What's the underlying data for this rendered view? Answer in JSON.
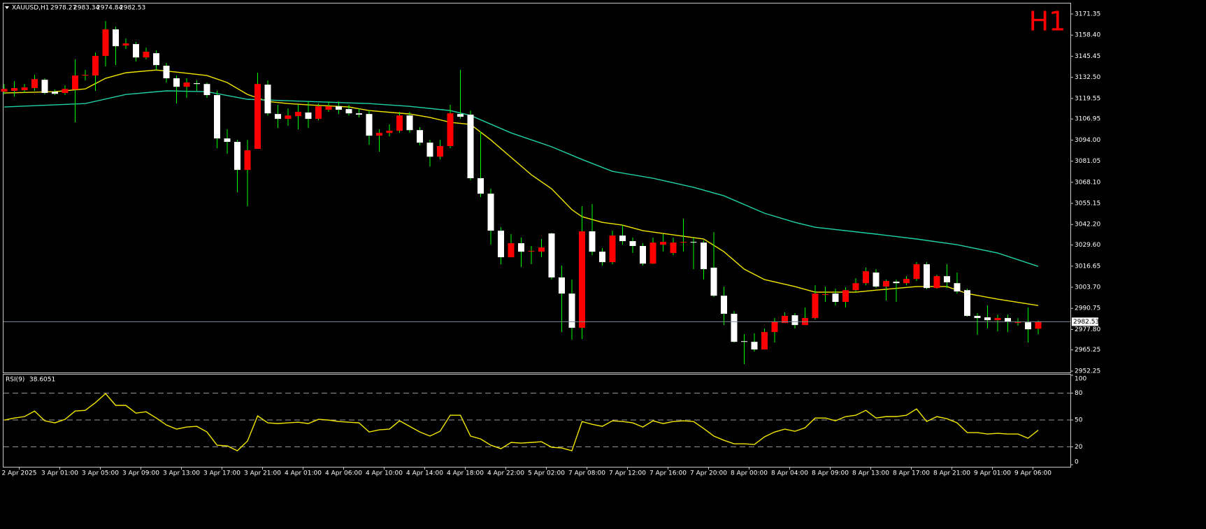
{
  "chart_data": {
    "type": "candlestick",
    "title": "XAUUSD,H1",
    "timeframe": "H1",
    "categories": [
      null,
      "2 Apr 2025",
      null,
      null,
      null,
      "3 Apr 01:00",
      null,
      null,
      null,
      "3 Apr 05:00",
      null,
      null,
      null,
      "3 Apr 09:00",
      null,
      null,
      null,
      "3 Apr 13:00",
      null,
      null,
      null,
      "3 Apr 17:00",
      null,
      null,
      null,
      "3 Apr 21:00",
      null,
      null,
      null,
      "4 Apr 01:00",
      null,
      null,
      null,
      "4 Apr 06:00",
      null,
      null,
      null,
      "4 Apr 10:00",
      null,
      null,
      null,
      "4 Apr 14:00",
      null,
      null,
      null,
      "4 Apr 18:00",
      null,
      null,
      null,
      "4 Apr 22:00",
      null,
      null,
      null,
      "5 Apr 02:00",
      null,
      null,
      null,
      "7 Apr 08:00",
      null,
      null,
      null,
      "7 Apr 12:00",
      null,
      null,
      null,
      "7 Apr 16:00",
      null,
      null,
      null,
      "7 Apr 20:00",
      null,
      null,
      null,
      "8 Apr 00:00",
      null,
      null,
      null,
      "8 Apr 04:00",
      null,
      null,
      null,
      "8 Apr 09:00",
      null,
      null,
      null,
      "8 Apr 13:00",
      null,
      null,
      null,
      "8 Apr 17:00",
      null,
      null,
      null,
      "8 Apr 21:00",
      null,
      null,
      null,
      "9 Apr 01:00",
      null,
      null,
      null,
      "9 Apr 06:00",
      null
    ],
    "open": [
      3123.7,
      3124.2,
      3124.6,
      3125.9,
      3131.0,
      3123.7,
      3122.9,
      3125.0,
      3133.6,
      3133.6,
      3145.6,
      3161.9,
      3152.0,
      3152.9,
      3144.7,
      3147.3,
      3139.6,
      3131.9,
      3126.7,
      3128.9,
      3128.4,
      3121.6,
      3095.0,
      3092.9,
      3075.7,
      3088.6,
      3128.0,
      3110.0,
      3107.0,
      3108.7,
      3110.9,
      3107.0,
      3112.6,
      3114.7,
      3113.0,
      3110.4,
      3110.0,
      3096.7,
      3098.4,
      3099.7,
      3109.1,
      3100.1,
      3092.4,
      3083.8,
      3090.3,
      3110.0,
      3109.6,
      3070.6,
      3061.1,
      3038.4,
      3022.1,
      3030.7,
      3026.0,
      3025.5,
      3036.7,
      3009.7,
      2999.8,
      2978.8,
      3038.0,
      3025.5,
      3019.1,
      3035.4,
      3032.0,
      3029.0,
      3018.2,
      3029.8,
      3024.7,
      3031.5,
      3031.5,
      3031.1,
      3015.7,
      2998.5,
      2987.4,
      2970.6,
      2970.2,
      2965.5,
      2976.2,
      2981.8,
      2986.5,
      2980.5,
      2984.8,
      2999.4,
      2999.8,
      2994.7,
      3001.9,
      3006.2,
      3012.7,
      3004.1,
      3007.1,
      3006.2,
      3008.8,
      3017.8,
      3003.2,
      3010.5,
      3006.2,
      3001.9,
      2986.1,
      2985.2,
      2983.5,
      2984.8,
      2982.2,
      2982.2,
      2978.27
    ],
    "high": [
      3128.4,
      3130.2,
      3128.4,
      3134.0,
      3131.9,
      3125.0,
      3127.6,
      3143.5,
      3137.0,
      3147.7,
      3167.0,
      3163.6,
      3156.3,
      3154.2,
      3150.7,
      3149.0,
      3141.3,
      3133.6,
      3131.9,
      3130.6,
      3129.3,
      3124.2,
      3100.6,
      3094.1,
      3094.1,
      3135.3,
      3130.6,
      3115.6,
      3113.4,
      3115.6,
      3117.7,
      3116.4,
      3117.7,
      3117.7,
      3115.6,
      3113.4,
      3112.1,
      3100.6,
      3103.6,
      3111.3,
      3111.3,
      3101.9,
      3094.1,
      3094.1,
      3115.6,
      3137.0,
      3112.1,
      3099.3,
      3064.1,
      3040.5,
      3036.3,
      3034.1,
      3029.0,
      3033.3,
      3037.1,
      3017.0,
      3008.4,
      3053.4,
      3054.7,
      3027.7,
      3038.4,
      3041.8,
      3034.1,
      3030.7,
      3034.1,
      3036.3,
      3034.1,
      3045.7,
      3034.1,
      3032.4,
      3037.5,
      3004.1,
      2989.1,
      2974.9,
      2975.4,
      2978.4,
      2984.8,
      2988.2,
      2987.8,
      2991.2,
      3004.9,
      3004.1,
      3002.8,
      3003.7,
      3009.2,
      3015.7,
      3014.8,
      3008.4,
      3008.4,
      3010.5,
      3019.1,
      3019.1,
      3011.4,
      3017.8,
      3012.7,
      3002.8,
      2987.8,
      2992.5,
      2986.9,
      2986.9,
      2984.8,
      2991.2,
      2983.34
    ],
    "low": [
      3122.0,
      3120.7,
      3122.9,
      3124.2,
      3122.0,
      3121.6,
      3121.6,
      3104.9,
      3130.6,
      3124.2,
      3139.2,
      3140.0,
      3149.9,
      3142.2,
      3143.5,
      3137.0,
      3129.3,
      3116.4,
      3119.9,
      3124.2,
      3119.9,
      3089.0,
      3085.6,
      3062.0,
      3053.4,
      3088.6,
      3109.1,
      3101.4,
      3102.7,
      3100.6,
      3101.4,
      3106.1,
      3111.3,
      3110.0,
      3109.1,
      3107.9,
      3091.1,
      3086.9,
      3096.3,
      3098.4,
      3098.4,
      3090.7,
      3077.8,
      3082.1,
      3089.0,
      3107.0,
      3069.3,
      3059.0,
      3029.8,
      3017.8,
      3022.1,
      3016.1,
      3017.8,
      3022.1,
      3008.4,
      2976.2,
      2971.5,
      2971.9,
      3023.4,
      3017.0,
      3017.8,
      3029.8,
      3024.7,
      3017.0,
      3017.8,
      3025.5,
      3023.4,
      3025.5,
      3014.8,
      3008.4,
      2997.7,
      2980.5,
      2969.8,
      2956.5,
      2964.2,
      2965.5,
      2969.8,
      2981.8,
      2978.4,
      2980.5,
      2983.9,
      2994.7,
      2992.5,
      2991.2,
      3000.7,
      3004.9,
      3003.2,
      2995.5,
      2994.7,
      3004.9,
      3007.5,
      3002.4,
      3002.8,
      3003.2,
      2999.8,
      2985.7,
      2974.5,
      2978.4,
      2976.6,
      2976.2,
      2980.1,
      2969.8,
      2974.84
    ],
    "close": [
      3125.4,
      3125.9,
      3126.3,
      3131.4,
      3122.9,
      3122.4,
      3125.4,
      3133.6,
      3134.0,
      3145.6,
      3161.9,
      3151.6,
      3153.3,
      3144.7,
      3148.2,
      3140.0,
      3131.9,
      3126.7,
      3129.3,
      3128.4,
      3121.6,
      3095.0,
      3092.9,
      3075.7,
      3087.7,
      3128.4,
      3110.4,
      3107.0,
      3109.1,
      3111.3,
      3107.0,
      3114.7,
      3114.7,
      3112.6,
      3110.4,
      3109.6,
      3096.7,
      3098.4,
      3099.7,
      3109.1,
      3100.1,
      3092.4,
      3083.8,
      3090.3,
      3110.4,
      3108.3,
      3070.6,
      3061.1,
      3038.4,
      3022.1,
      3030.7,
      3025.5,
      3026.0,
      3028.1,
      3009.7,
      2999.8,
      2978.8,
      3038.0,
      3025.5,
      3019.1,
      3035.4,
      3032.0,
      3029.0,
      3018.2,
      3031.1,
      3031.5,
      3031.1,
      3031.5,
      3031.1,
      3014.8,
      2998.5,
      2987.4,
      2970.2,
      2970.2,
      2965.5,
      2976.2,
      2982.7,
      2986.1,
      2980.5,
      2984.8,
      2999.8,
      2999.4,
      2994.7,
      3001.9,
      3006.2,
      3013.5,
      3004.1,
      3007.5,
      3006.2,
      3008.8,
      3017.8,
      3003.2,
      3010.5,
      3006.7,
      3001.1,
      2986.1,
      2984.8,
      2983.5,
      2984.8,
      2982.7,
      2982.2,
      2977.9,
      2982.53
    ],
    "up_color": "#ff0000",
    "down_color": "#ffffff",
    "wick_color": "#00ff00",
    "bid_line_color": "#7f8c99",
    "ylim": [
      2951.4,
      3177.8
    ],
    "yticks": [
      3171.35,
      {
        "value": 3158.4,
        "label": "3158.40"
      },
      3145.45,
      {
        "value": 3132.5,
        "label": "3132.50"
      },
      3119.55,
      3106.95,
      {
        "value": 3094,
        "label": "3094.00"
      },
      3081.05,
      {
        "value": 3068.1,
        "label": "3068.10"
      },
      3055.15,
      {
        "value": 3042.2,
        "label": "3042.20"
      },
      {
        "value": 3029.6,
        "label": "3029.60"
      },
      3016.65,
      {
        "value": 3003.7,
        "label": "3003.70"
      },
      2990.75,
      {
        "value": 2977.8,
        "label": "2977.80"
      },
      2965.25,
      2952.25
    ],
    "overlays": [
      {
        "color": "#f2e600",
        "x": [
          0,
          5,
          8,
          10,
          12,
          15,
          17,
          20,
          22,
          24,
          26,
          28,
          30,
          34,
          36,
          40,
          42,
          44,
          46,
          48,
          50,
          52,
          54,
          56,
          57,
          59,
          61,
          63,
          67,
          69,
          71,
          73,
          75,
          78,
          80,
          84,
          86,
          90,
          93,
          95,
          98,
          102
        ],
        "values": [
          3122.9,
          3123.7,
          3125.4,
          3131.9,
          3135.3,
          3137.0,
          3135.7,
          3133.6,
          3129.3,
          3122.0,
          3117.7,
          3116.4,
          3115.6,
          3114.3,
          3112.1,
          3110.0,
          3107.9,
          3104.9,
          3103.6,
          3094.1,
          3083.4,
          3072.7,
          3064.1,
          3051.3,
          3047.0,
          3043.5,
          3041.8,
          3038.4,
          3035.0,
          3033.3,
          3025.5,
          3014.8,
          3008.4,
          3004.1,
          3000.7,
          3000.7,
          3001.9,
          3004.1,
          3004.1,
          2999.8,
          2996.4,
          2992.5
        ]
      },
      {
        "color": "#1fd2a6",
        "x": [
          0,
          8,
          12,
          16,
          20,
          24,
          30,
          36,
          40,
          44,
          46,
          50,
          54,
          57,
          60,
          64,
          68,
          71,
          75,
          78,
          80,
          86,
          90,
          94,
          98,
          102
        ],
        "values": [
          3114.3,
          3116.4,
          3122.0,
          3124.2,
          3123.7,
          3119.0,
          3117.7,
          3116.4,
          3114.7,
          3112.1,
          3109.1,
          3098.4,
          3089.9,
          3082.1,
          3074.8,
          3070.6,
          3065.0,
          3059.8,
          3049.1,
          3043.5,
          3040.5,
          3036.3,
          3033.3,
          3029.8,
          3024.7,
          3016.5
        ]
      }
    ],
    "indicator": {
      "type": "line",
      "title": "RSI(9)",
      "color": "#f2e600",
      "level_color": "#9a9a9a",
      "values": [
        49.9,
        52.2,
        53.8,
        60.0,
        49.1,
        46.8,
        50.7,
        60.0,
        60.8,
        69.4,
        79.5,
        66.3,
        66.3,
        57.7,
        59.2,
        52.2,
        44.4,
        39.8,
        42.1,
        42.9,
        36.6,
        21.8,
        21.0,
        15.6,
        26.5,
        54.6,
        46.8,
        46.0,
        46.8,
        47.5,
        46.0,
        50.7,
        49.9,
        48.3,
        47.5,
        46.8,
        36.6,
        39.0,
        39.8,
        49.1,
        42.9,
        36.6,
        32.0,
        37.4,
        55.3,
        55.3,
        32.0,
        28.8,
        21.8,
        17.9,
        24.9,
        24.2,
        24.9,
        25.7,
        19.5,
        18.7,
        15.6,
        48.3,
        45.2,
        42.9,
        49.1,
        48.3,
        46.8,
        42.1,
        49.1,
        46.0,
        48.3,
        49.1,
        48.3,
        40.5,
        32.0,
        27.3,
        23.4,
        23.4,
        22.6,
        31.2,
        36.6,
        39.8,
        37.4,
        41.3,
        52.2,
        52.2,
        49.1,
        53.8,
        55.3,
        60.8,
        52.2,
        53.8,
        53.8,
        55.3,
        62.4,
        48.3,
        53.8,
        51.4,
        46.8,
        35.9,
        35.9,
        34.3,
        35.1,
        34.3,
        34.3,
        29.6,
        38.6051
      ],
      "ylim": [
        0,
        100
      ],
      "yticks": [
        100,
        80,
        50,
        20,
        0
      ]
    }
  }
}
